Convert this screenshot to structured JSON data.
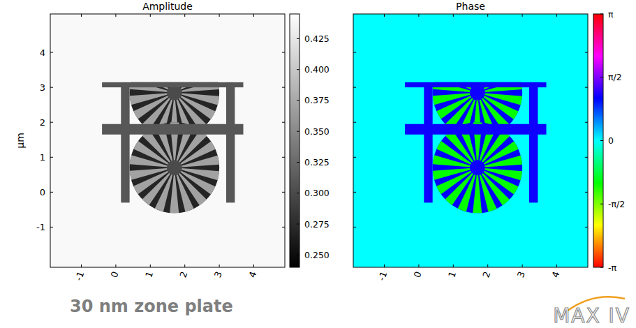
{
  "chart_data": [
    {
      "type": "heatmap",
      "title": "Amplitude",
      "ylabel": "μm",
      "color": "gray",
      "xlim": [
        -1.9,
        4.9
      ],
      "ylim": [
        -2.15,
        5.1
      ],
      "xticks": [
        -1,
        0,
        1,
        2,
        3,
        4
      ],
      "yticks": [
        -1,
        0,
        1,
        2,
        3,
        4
      ],
      "features": {
        "background": 0.44,
        "extent": {
          "x": [
            -0.5,
            3.7
          ],
          "y": [
            -0.6,
            3.15
          ]
        },
        "stars": [
          {
            "x": 1.7,
            "y": 2.85,
            "radius": 1.3,
            "hub": 0.22,
            "spokes": 18,
            "value": 0.37,
            "gap_value": 0.27,
            "hub_value": 0.3
          },
          {
            "x": 1.7,
            "y": 0.7,
            "radius": 1.3,
            "hub": 0.22,
            "spokes": 18,
            "value": 0.37,
            "gap_value": 0.27,
            "hub_value": 0.3
          }
        ],
        "bars": [
          {
            "x": [
              -0.4,
              3.7
            ],
            "y": [
              1.65,
              1.95
            ],
            "value": 0.31
          },
          {
            "x": [
              -0.4,
              3.7
            ],
            "y": [
              3.0,
              3.15
            ],
            "value": 0.31
          },
          {
            "x": [
              0.15,
              0.4
            ],
            "y": [
              -0.3,
              3.15
            ],
            "value": 0.31
          },
          {
            "x": [
              3.2,
              3.45
            ],
            "y": [
              -0.3,
              3.15
            ],
            "value": 0.31
          }
        ]
      },
      "colorbar": {
        "range": [
          0.24,
          0.445
        ],
        "ticks": [
          {
            "value": 0.25,
            "label": "0.250"
          },
          0.275,
          {
            "value": 0.3,
            "label": "0.300"
          },
          0.325,
          {
            "value": 0.35,
            "label": "0.350"
          },
          0.375,
          {
            "value": 0.4,
            "label": "0.400"
          },
          0.425
        ]
      }
    },
    {
      "type": "heatmap",
      "title": "Phase",
      "color": "hsv",
      "tick_labels": "x",
      "xlim": [
        -1.9,
        4.9
      ],
      "ylim": [
        -2.15,
        5.1
      ],
      "xticks": [
        -1,
        0,
        1,
        2,
        3,
        4
      ],
      "yticks": [
        -1,
        0,
        1,
        2,
        3,
        4
      ],
      "features": {
        "background": 0,
        "extent": {
          "x": [
            -0.5,
            3.7
          ],
          "y": [
            -0.6,
            3.15
          ]
        },
        "stars": [
          {
            "x": 1.7,
            "y": 2.85,
            "radius": 1.3,
            "hub": 0.22,
            "spokes": 18,
            "value": -1.05,
            "gap_value": 1.05,
            "hub_value": 1.1
          },
          {
            "x": 1.7,
            "y": 0.7,
            "radius": 1.3,
            "hub": 0.22,
            "spokes": 18,
            "value": -1.05,
            "gap_value": 1.05,
            "hub_value": 1.1
          }
        ],
        "bars": [
          {
            "x": [
              -0.4,
              3.7
            ],
            "y": [
              1.65,
              1.95
            ],
            "value": 1.1
          },
          {
            "x": [
              -0.4,
              3.7
            ],
            "y": [
              3.0,
              3.15
            ],
            "value": 1.1
          },
          {
            "x": [
              0.15,
              0.4
            ],
            "y": [
              -0.3,
              3.15
            ],
            "value": 1.1
          },
          {
            "x": [
              3.2,
              3.45
            ],
            "y": [
              -0.3,
              3.15
            ],
            "value": 1.1
          }
        ]
      },
      "colorbar": {
        "range": [
          -3.14159,
          3.14159
        ],
        "ticks": [
          {
            "value": -3.14159,
            "label": "-π"
          },
          {
            "value": -1.5708,
            "label": "-π/2"
          },
          0,
          {
            "value": 1.5708,
            "label": "π/2"
          },
          {
            "value": 3.14159,
            "label": "π"
          }
        ]
      }
    }
  ],
  "caption": "30 nm zone plate",
  "logo": "MAX IV"
}
